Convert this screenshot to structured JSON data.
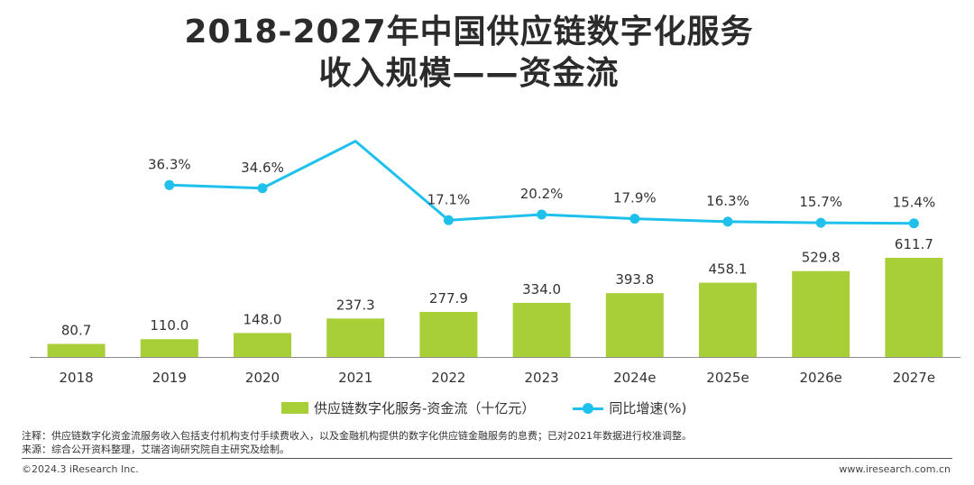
{
  "title": {
    "line1": "2018-2027年中国供应链数字化服务",
    "line2": "收入规模——资金流"
  },
  "chart_data": {
    "type": "bar",
    "categories": [
      "2018",
      "2019",
      "2020",
      "2021",
      "2022",
      "2023",
      "2024e",
      "2025e",
      "2026e",
      "2027e"
    ],
    "series": [
      {
        "name": "供应链数字化服务-资金流（十亿元）",
        "type": "bar",
        "color": "#a9cf38",
        "values": [
          80.7,
          110.0,
          148.0,
          237.3,
          277.9,
          334.0,
          393.8,
          458.1,
          529.8,
          611.7
        ],
        "labels": [
          "80.7",
          "110.0",
          "148.0",
          "237.3",
          "277.9",
          "334.0",
          "393.8",
          "458.1",
          "529.8",
          "611.7"
        ]
      },
      {
        "name": "同比增速(%)",
        "type": "line",
        "color": "#1fc1ec",
        "values": [
          null,
          36.3,
          34.6,
          60.3,
          17.1,
          20.2,
          17.9,
          16.3,
          15.7,
          15.4
        ],
        "labels": [
          "",
          "36.3%",
          "34.6%",
          "",
          "17.1%",
          "20.2%",
          "17.9%",
          "16.3%",
          "15.7%",
          "15.4%"
        ]
      }
    ],
    "legend_position": "bottom",
    "grid": false
  },
  "notes": {
    "line1": "注释：供应链数字化资金流服务收入包括支付机构支付手续费收入，以及金融机构提供的数字化供应链金融服务的息费；已对2021年数据进行校准调整。",
    "line2": "来源：综合公开资料整理，艾瑞咨询研究院自主研究及绘制。"
  },
  "footer": {
    "copyright": "©2024.3 iResearch Inc.",
    "website": "www.iresearch.com.cn"
  }
}
